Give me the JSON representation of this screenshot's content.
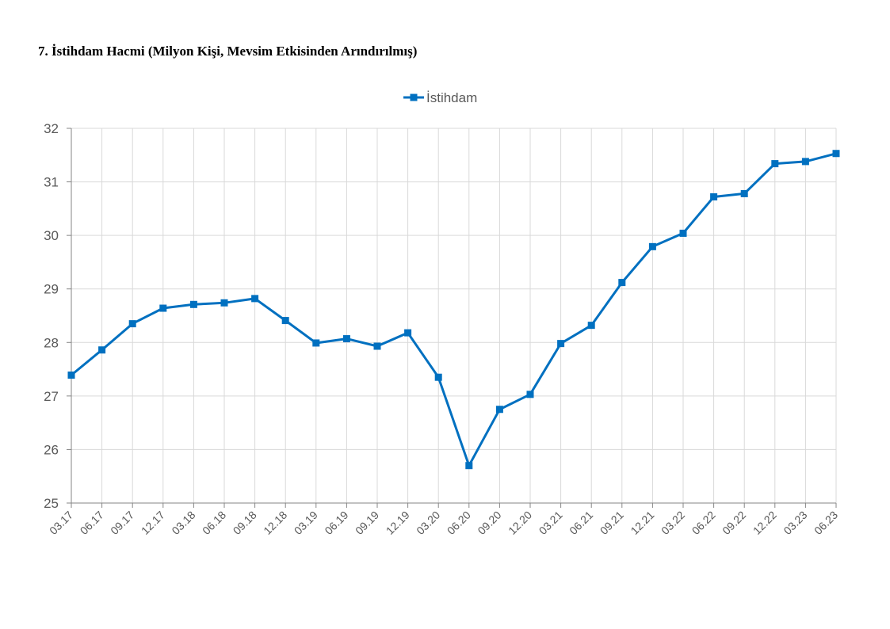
{
  "page": {
    "title": "7. İstihdam Hacmi (Milyon Kişi, Mevsim Etkisinden Arındırılmış)"
  },
  "chart_data": {
    "type": "line",
    "title": "",
    "xlabel": "",
    "ylabel": "",
    "ylim": [
      25,
      32
    ],
    "yticks": [
      25,
      26,
      27,
      28,
      29,
      30,
      31,
      32
    ],
    "grid": true,
    "legend_position": "top-center",
    "categories": [
      "03.17",
      "06.17",
      "09.17",
      "12.17",
      "03.18",
      "06.18",
      "09.18",
      "12.18",
      "03.19",
      "06.19",
      "09.19",
      "12.19",
      "03.20",
      "06.20",
      "09.20",
      "12.20",
      "03.21",
      "06.21",
      "09.21",
      "12.21",
      "03.22",
      "06.22",
      "09.22",
      "12.22",
      "03.23",
      "06.23"
    ],
    "series": [
      {
        "name": "İstihdam",
        "color": "#0070C0",
        "marker": "square",
        "values": [
          27.39,
          27.86,
          28.35,
          28.64,
          28.71,
          28.74,
          28.82,
          28.41,
          27.99,
          28.07,
          27.93,
          28.18,
          27.35,
          25.7,
          26.75,
          27.03,
          27.98,
          28.32,
          29.12,
          29.79,
          30.04,
          30.72,
          30.78,
          31.34,
          31.38,
          31.53
        ]
      }
    ]
  }
}
